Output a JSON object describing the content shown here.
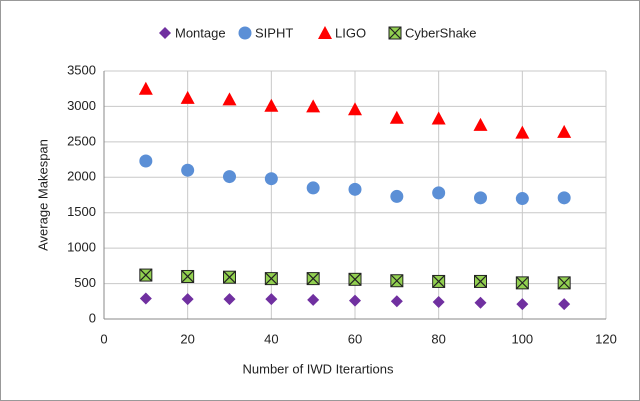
{
  "chart_data": {
    "type": "scatter",
    "x_label": "Number of IWD Iterartions",
    "y_label": "Average Makespan",
    "xlim": [
      0,
      120
    ],
    "xticks": [
      0,
      20,
      40,
      60,
      80,
      100,
      120
    ],
    "ylim": [
      0,
      3500
    ],
    "yticks": [
      0,
      500,
      1000,
      1500,
      2000,
      2500,
      3000,
      3500
    ],
    "grid": true,
    "legend": "top",
    "x": [
      10,
      20,
      30,
      40,
      50,
      60,
      70,
      80,
      90,
      100,
      110
    ],
    "series": [
      {
        "name": "Montage",
        "color": "#7030a0",
        "marker": "diamond",
        "values": [
          290,
          280,
          280,
          280,
          270,
          260,
          250,
          240,
          230,
          210,
          210
        ]
      },
      {
        "name": "SIPHT",
        "color": "#5b8fd6",
        "marker": "circle",
        "values": [
          2230,
          2100,
          2010,
          1980,
          1850,
          1830,
          1730,
          1780,
          1710,
          1700,
          1710
        ]
      },
      {
        "name": "LIGO",
        "color": "#ff0000",
        "marker": "triangle",
        "values": [
          3250,
          3120,
          3100,
          3010,
          3000,
          2960,
          2840,
          2830,
          2740,
          2630,
          2640
        ]
      },
      {
        "name": "CyberShake",
        "color": "#92d050",
        "marker": "xsquare",
        "values": [
          620,
          600,
          590,
          570,
          570,
          560,
          540,
          530,
          530,
          510,
          510
        ]
      }
    ]
  }
}
